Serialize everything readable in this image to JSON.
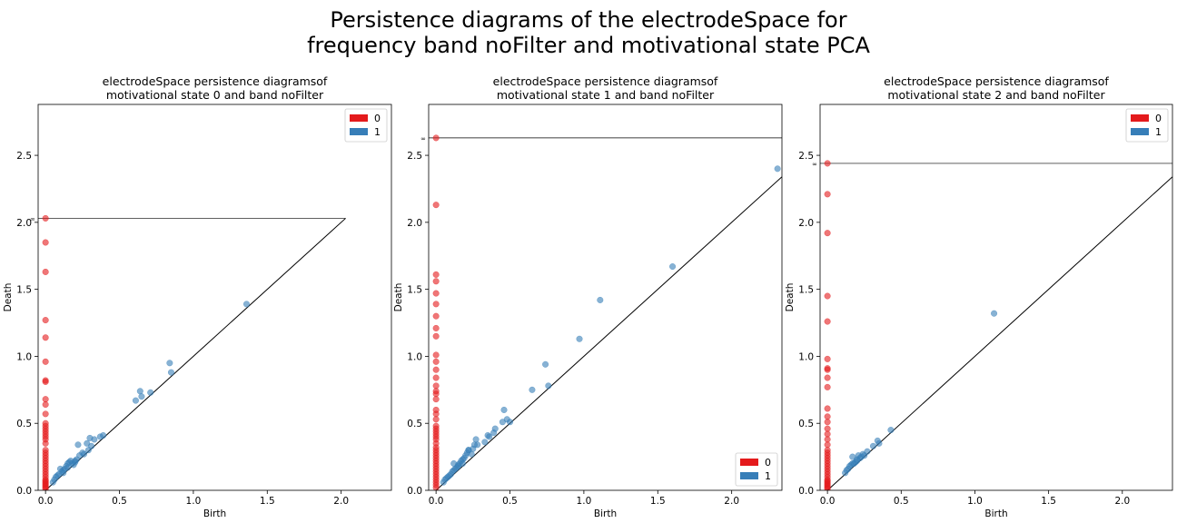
{
  "figure": {
    "title_line1": "Persistence diagrams of the electrodeSpace for",
    "title_line2": "frequency band noFilter and motivational state PCA"
  },
  "colors": {
    "h0": "#e41a1c",
    "h1": "#377eb8",
    "diag": "#000000"
  },
  "chart_data": [
    {
      "type": "scatter",
      "title_line1": "electrodeSpace persistence diagramsof",
      "title_line2": "motivational state 0 and band noFilter",
      "xlabel": "Birth",
      "ylabel": "Death",
      "xlim": [
        -0.05,
        2.34
      ],
      "ylim": [
        0,
        2.88
      ],
      "xticks": [
        0.0,
        0.5,
        1.0,
        1.5,
        2.0
      ],
      "yticks": [
        0.0,
        0.5,
        1.0,
        1.5,
        2.0,
        2.5
      ],
      "infinity": 2.03,
      "infinity_label": "∞",
      "legend": {
        "position": "upper right",
        "entries": [
          "0",
          "1"
        ]
      },
      "series": [
        {
          "name": "0",
          "color": "#e41a1c",
          "x": [
            0,
            0,
            0,
            0,
            0,
            0,
            0,
            0,
            0,
            0,
            0,
            0,
            0,
            0,
            0,
            0,
            0,
            0,
            0,
            0,
            0,
            0,
            0,
            0,
            0,
            0,
            0,
            0,
            0,
            0,
            0,
            0,
            0,
            0,
            0,
            0,
            0,
            0
          ],
          "y": [
            2.03,
            1.85,
            1.63,
            1.27,
            1.14,
            0.96,
            0.82,
            0.81,
            0.68,
            0.64,
            0.57,
            0.5,
            0.48,
            0.46,
            0.44,
            0.42,
            0.4,
            0.38,
            0.35,
            0.3,
            0.28,
            0.26,
            0.24,
            0.22,
            0.2,
            0.18,
            0.16,
            0.14,
            0.12,
            0.1,
            0.08,
            0.07,
            0.06,
            0.05,
            0.04,
            0.03,
            0.02,
            0.01
          ]
        },
        {
          "name": "1",
          "color": "#377eb8",
          "x": [
            1.36,
            0.84,
            0.85,
            0.64,
            0.65,
            0.61,
            0.71,
            0.39,
            0.37,
            0.33,
            0.3,
            0.28,
            0.22,
            0.25,
            0.29,
            0.31,
            0.2,
            0.17,
            0.16,
            0.15,
            0.19,
            0.14,
            0.13,
            0.12,
            0.11,
            0.1,
            0.09,
            0.08,
            0.07,
            0.06,
            0.05,
            0.18,
            0.21,
            0.23,
            0.26,
            0.12,
            0.15,
            0.2
          ],
          "y": [
            1.39,
            0.95,
            0.88,
            0.74,
            0.7,
            0.67,
            0.73,
            0.41,
            0.4,
            0.38,
            0.39,
            0.35,
            0.34,
            0.28,
            0.3,
            0.33,
            0.21,
            0.22,
            0.21,
            0.2,
            0.19,
            0.18,
            0.16,
            0.15,
            0.14,
            0.16,
            0.12,
            0.11,
            0.1,
            0.08,
            0.06,
            0.2,
            0.23,
            0.26,
            0.27,
            0.13,
            0.17,
            0.22
          ]
        }
      ]
    },
    {
      "type": "scatter",
      "title_line1": "electrodeSpace persistence diagramsof",
      "title_line2": "motivational state 1 and band noFilter",
      "xlabel": "Birth",
      "ylabel": "Death",
      "xlim": [
        -0.05,
        2.34
      ],
      "ylim": [
        0,
        2.88
      ],
      "xticks": [
        0.0,
        0.5,
        1.0,
        1.5,
        2.0
      ],
      "yticks": [
        0.0,
        0.5,
        1.0,
        1.5,
        2.0,
        2.5
      ],
      "infinity": 2.63,
      "infinity_label": "∞",
      "legend": {
        "position": "lower right",
        "entries": [
          "0",
          "1"
        ]
      },
      "series": [
        {
          "name": "0",
          "color": "#e41a1c",
          "x": [
            0,
            0,
            0,
            0,
            0,
            0,
            0,
            0,
            0,
            0,
            0,
            0,
            0,
            0,
            0,
            0,
            0,
            0,
            0,
            0,
            0,
            0,
            0,
            0,
            0,
            0,
            0,
            0,
            0,
            0,
            0,
            0,
            0,
            0,
            0,
            0,
            0,
            0,
            0,
            0,
            0,
            0,
            0
          ],
          "y": [
            2.63,
            2.13,
            1.61,
            1.56,
            1.47,
            1.39,
            1.3,
            1.21,
            1.15,
            1.01,
            0.96,
            0.9,
            0.84,
            0.78,
            0.74,
            0.72,
            0.68,
            0.6,
            0.57,
            0.53,
            0.48,
            0.46,
            0.44,
            0.42,
            0.4,
            0.38,
            0.35,
            0.32,
            0.3,
            0.28,
            0.26,
            0.24,
            0.22,
            0.2,
            0.18,
            0.16,
            0.14,
            0.12,
            0.1,
            0.08,
            0.06,
            0.04,
            0.02
          ]
        },
        {
          "name": "1",
          "color": "#377eb8",
          "x": [
            2.31,
            1.6,
            1.11,
            0.97,
            0.74,
            0.76,
            0.65,
            0.46,
            0.45,
            0.48,
            0.5,
            0.4,
            0.39,
            0.35,
            0.36,
            0.33,
            0.27,
            0.26,
            0.25,
            0.22,
            0.21,
            0.24,
            0.2,
            0.19,
            0.18,
            0.17,
            0.16,
            0.15,
            0.14,
            0.13,
            0.12,
            0.11,
            0.1,
            0.09,
            0.08,
            0.07,
            0.06,
            0.05,
            0.22,
            0.18,
            0.15,
            0.12,
            0.28
          ],
          "y": [
            2.4,
            1.67,
            1.42,
            1.13,
            0.94,
            0.78,
            0.75,
            0.6,
            0.51,
            0.53,
            0.51,
            0.46,
            0.43,
            0.41,
            0.4,
            0.36,
            0.38,
            0.34,
            0.31,
            0.3,
            0.28,
            0.27,
            0.26,
            0.24,
            0.23,
            0.22,
            0.2,
            0.19,
            0.17,
            0.16,
            0.15,
            0.14,
            0.12,
            0.11,
            0.1,
            0.09,
            0.08,
            0.06,
            0.3,
            0.2,
            0.18,
            0.2,
            0.34
          ]
        }
      ]
    },
    {
      "type": "scatter",
      "title_line1": "electrodeSpace persistence diagramsof",
      "title_line2": "motivational state 2 and band noFilter",
      "xlabel": "Birth",
      "ylabel": "Death",
      "xlim": [
        -0.05,
        2.34
      ],
      "ylim": [
        0,
        2.88
      ],
      "xticks": [
        0.0,
        0.5,
        1.0,
        1.5,
        2.0
      ],
      "yticks": [
        0.0,
        0.5,
        1.0,
        1.5,
        2.0,
        2.5
      ],
      "infinity": 2.44,
      "infinity_label": "∞",
      "legend": {
        "position": "upper right",
        "entries": [
          "0",
          "1"
        ]
      },
      "series": [
        {
          "name": "0",
          "color": "#e41a1c",
          "x": [
            0,
            0,
            0,
            0,
            0,
            0,
            0,
            0,
            0,
            0,
            0,
            0,
            0,
            0,
            0,
            0,
            0,
            0,
            0,
            0,
            0,
            0,
            0,
            0,
            0,
            0,
            0,
            0,
            0,
            0,
            0,
            0,
            0,
            0,
            0,
            0
          ],
          "y": [
            2.44,
            2.21,
            1.92,
            1.45,
            1.26,
            0.98,
            0.91,
            0.9,
            0.84,
            0.77,
            0.61,
            0.55,
            0.51,
            0.46,
            0.42,
            0.38,
            0.34,
            0.3,
            0.28,
            0.26,
            0.24,
            0.22,
            0.2,
            0.18,
            0.16,
            0.14,
            0.12,
            0.1,
            0.08,
            0.07,
            0.06,
            0.05,
            0.04,
            0.03,
            0.02,
            0.01
          ]
        },
        {
          "name": "1",
          "color": "#377eb8",
          "x": [
            1.13,
            0.43,
            0.34,
            0.35,
            0.31,
            0.27,
            0.25,
            0.24,
            0.22,
            0.21,
            0.2,
            0.19,
            0.18,
            0.17,
            0.16,
            0.15,
            0.14,
            0.13,
            0.12,
            0.2,
            0.23,
            0.17
          ],
          "y": [
            1.32,
            0.45,
            0.37,
            0.35,
            0.33,
            0.29,
            0.26,
            0.27,
            0.24,
            0.26,
            0.22,
            0.21,
            0.2,
            0.25,
            0.19,
            0.18,
            0.16,
            0.15,
            0.13,
            0.23,
            0.25,
            0.2
          ]
        }
      ]
    }
  ]
}
